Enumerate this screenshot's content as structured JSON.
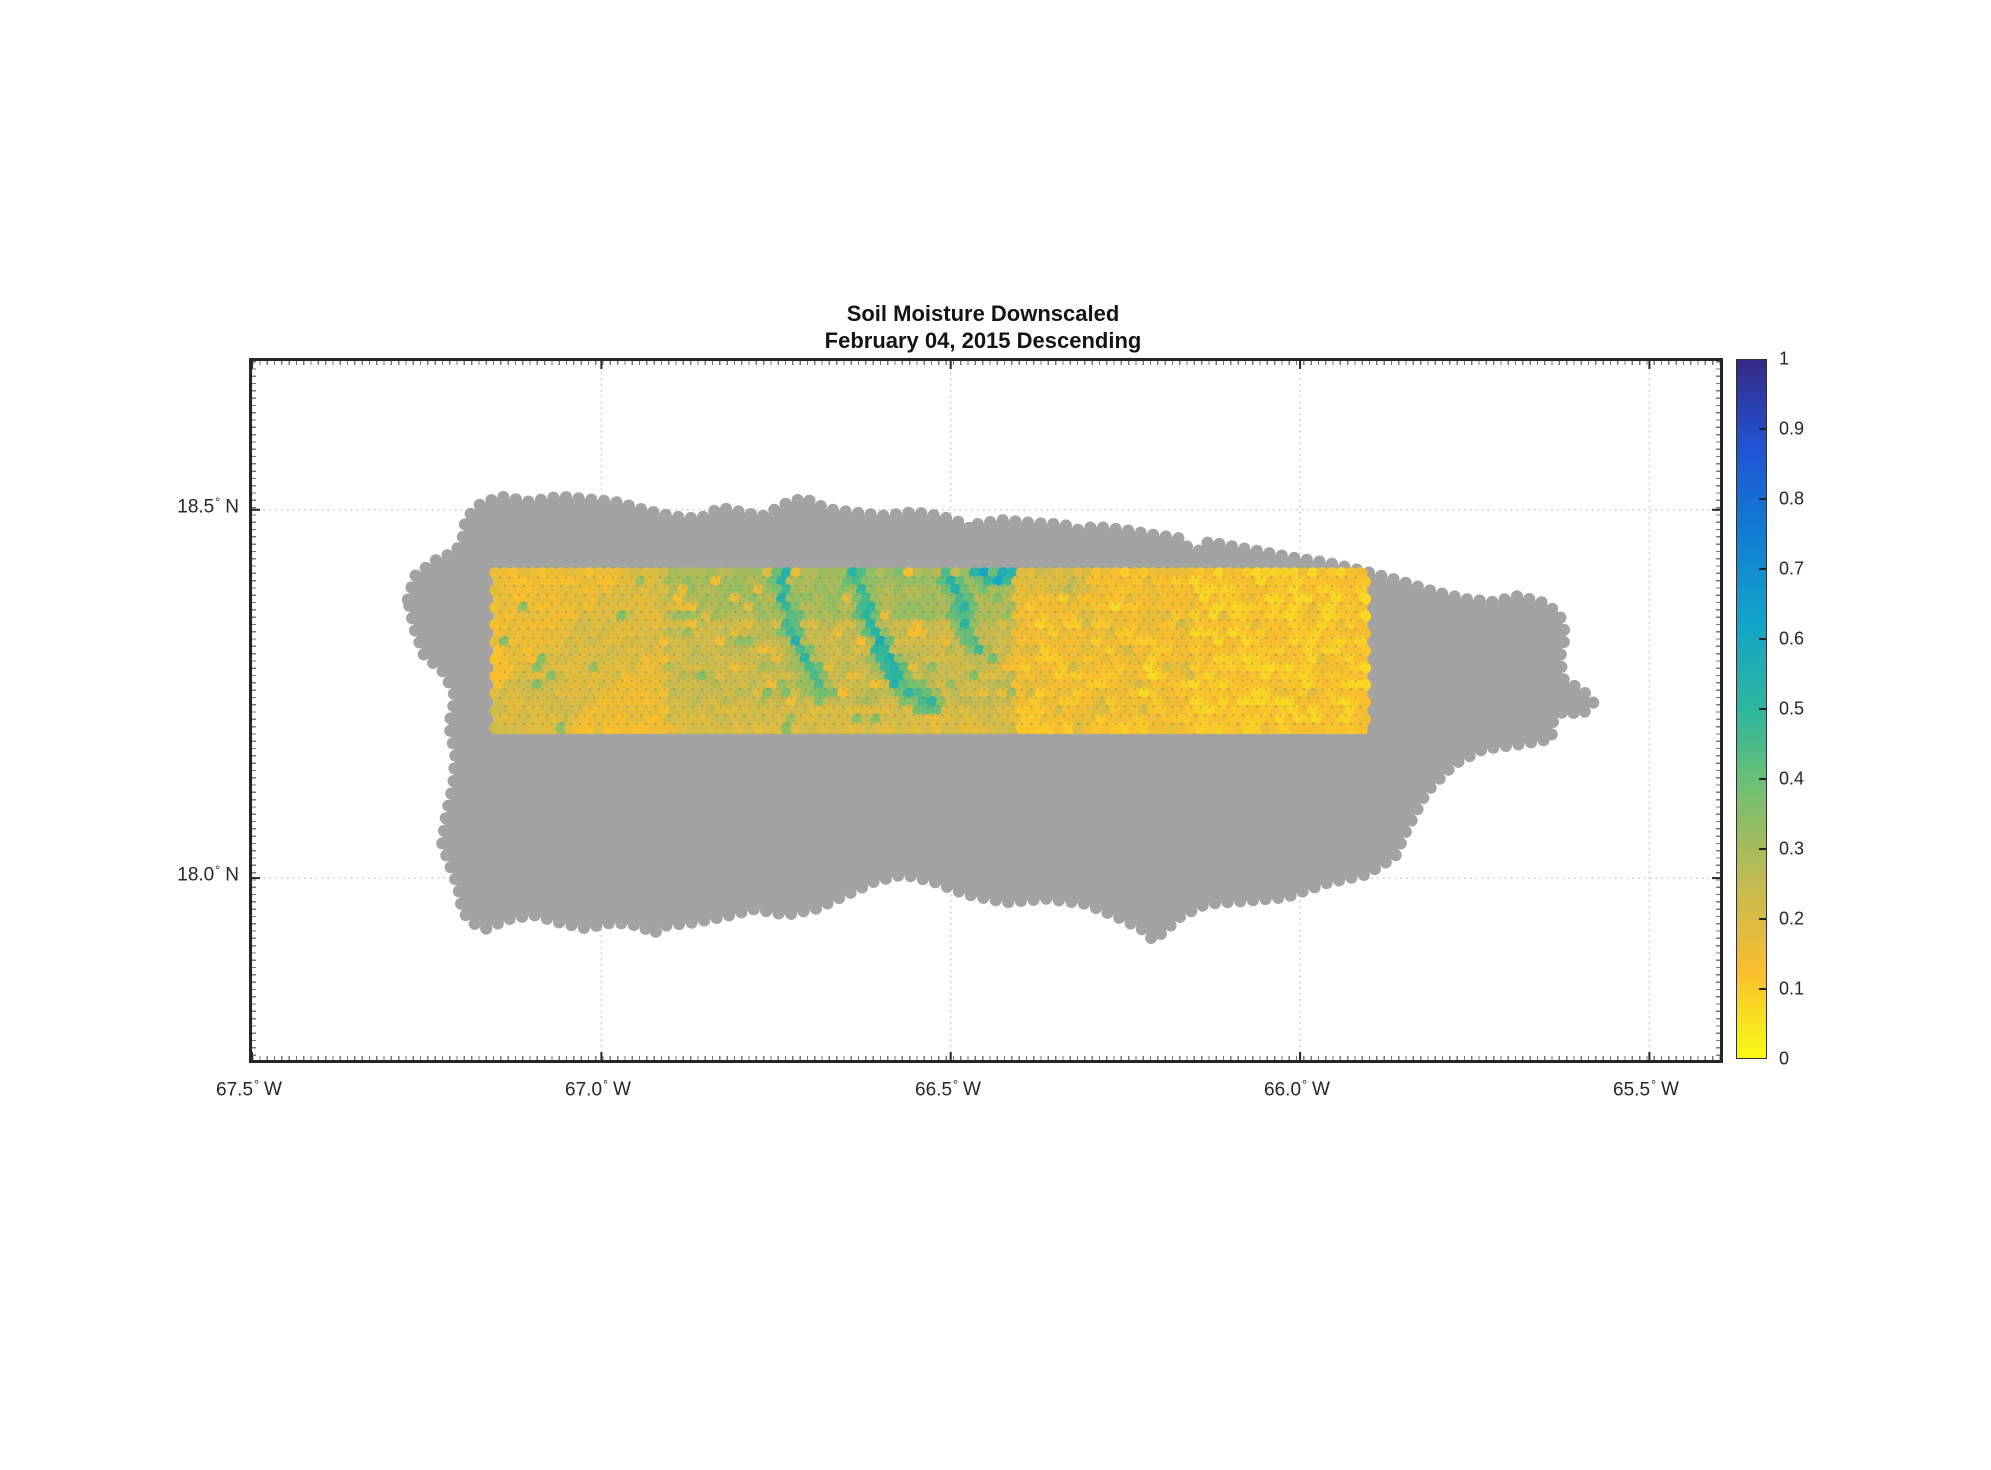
{
  "title": {
    "line1": "Soil Moisture Downscaled",
    "line2": "February 04, 2015 Descending"
  },
  "colors": {
    "background": "#ffffff",
    "land_mask": "#a3a3a3",
    "axis": "#262626",
    "grid": "#c8c8c8",
    "text": "#1a1a1a",
    "speck": "#777777"
  },
  "chart_data": {
    "type": "heatmap",
    "title": "Soil Moisture Downscaled",
    "subtitle": "February 04, 2015 Descending",
    "lon_range": [
      -67.5,
      -65.399
    ],
    "lat_range": [
      17.753,
      18.702
    ],
    "grid_on": true,
    "x_ticks": [
      {
        "lon": -67.5,
        "label": "67.5° W"
      },
      {
        "lon": -67.0,
        "label": "67.0° W"
      },
      {
        "lon": -66.5,
        "label": "66.5° W"
      },
      {
        "lon": -66.0,
        "label": "66.0° W"
      },
      {
        "lon": -65.5,
        "label": "65.5° W"
      }
    ],
    "y_ticks": [
      {
        "lat": 18.5,
        "label": "18.5° N"
      },
      {
        "lat": 18.0,
        "label": "18.0° N"
      }
    ],
    "colorbar": {
      "min": 0,
      "max": 1,
      "ticks": [
        {
          "v": 1.0,
          "label": "1"
        },
        {
          "v": 0.9,
          "label": "0.9"
        },
        {
          "v": 0.8,
          "label": "0.8"
        },
        {
          "v": 0.7,
          "label": "0.7"
        },
        {
          "v": 0.6,
          "label": "0.6"
        },
        {
          "v": 0.5,
          "label": "0.5"
        },
        {
          "v": 0.4,
          "label": "0.4"
        },
        {
          "v": 0.3,
          "label": "0.3"
        },
        {
          "v": 0.2,
          "label": "0.2"
        },
        {
          "v": 0.1,
          "label": "0.1"
        },
        {
          "v": 0.0,
          "label": "0"
        }
      ],
      "colormap_stops": [
        [
          0.0,
          "#f9fb14"
        ],
        [
          0.125,
          "#f9be2e"
        ],
        [
          0.25,
          "#c4ba51"
        ],
        [
          0.375,
          "#78c06e"
        ],
        [
          0.5,
          "#2db79e"
        ],
        [
          0.625,
          "#12a4ca"
        ],
        [
          0.75,
          "#107ed3"
        ],
        [
          0.875,
          "#2153d4"
        ],
        [
          1.0,
          "#352a87"
        ]
      ]
    },
    "landmask_outline_lonlat": [
      [
        -67.277,
        18.378
      ],
      [
        -67.267,
        18.41
      ],
      [
        -67.238,
        18.431
      ],
      [
        -67.209,
        18.443
      ],
      [
        -67.199,
        18.459
      ],
      [
        -67.194,
        18.488
      ],
      [
        -67.174,
        18.507
      ],
      [
        -67.144,
        18.518
      ],
      [
        -67.103,
        18.511
      ],
      [
        -67.059,
        18.518
      ],
      [
        -67.015,
        18.514
      ],
      [
        -66.976,
        18.51
      ],
      [
        -66.936,
        18.499
      ],
      [
        -66.897,
        18.491
      ],
      [
        -66.859,
        18.488
      ],
      [
        -66.83,
        18.503
      ],
      [
        -66.799,
        18.497
      ],
      [
        -66.77,
        18.491
      ],
      [
        -66.737,
        18.508
      ],
      [
        -66.71,
        18.516
      ],
      [
        -66.677,
        18.501
      ],
      [
        -66.635,
        18.496
      ],
      [
        -66.594,
        18.492
      ],
      [
        -66.552,
        18.497
      ],
      [
        -66.514,
        18.491
      ],
      [
        -66.479,
        18.481
      ],
      [
        -66.471,
        18.472
      ],
      [
        -66.461,
        18.481
      ],
      [
        -66.425,
        18.486
      ],
      [
        -66.382,
        18.482
      ],
      [
        -66.339,
        18.48
      ],
      [
        -66.318,
        18.473
      ],
      [
        -66.293,
        18.477
      ],
      [
        -66.253,
        18.473
      ],
      [
        -66.21,
        18.466
      ],
      [
        -66.17,
        18.461
      ],
      [
        -66.16,
        18.448
      ],
      [
        -66.143,
        18.444
      ],
      [
        -66.131,
        18.457
      ],
      [
        -66.107,
        18.452
      ],
      [
        -66.06,
        18.444
      ],
      [
        -66.01,
        18.435
      ],
      [
        -65.96,
        18.428
      ],
      [
        -65.91,
        18.417
      ],
      [
        -65.859,
        18.404
      ],
      [
        -65.809,
        18.389
      ],
      [
        -65.764,
        18.379
      ],
      [
        -65.723,
        18.375
      ],
      [
        -65.688,
        18.383
      ],
      [
        -65.652,
        18.374
      ],
      [
        -65.629,
        18.359
      ],
      [
        -65.62,
        18.33
      ],
      [
        -65.628,
        18.299
      ],
      [
        -65.623,
        18.27
      ],
      [
        -65.595,
        18.254
      ],
      [
        -65.58,
        18.238
      ],
      [
        -65.597,
        18.222
      ],
      [
        -65.623,
        18.227
      ],
      [
        -65.639,
        18.211
      ],
      [
        -65.64,
        18.189
      ],
      [
        -65.683,
        18.182
      ],
      [
        -65.738,
        18.175
      ],
      [
        -65.779,
        18.155
      ],
      [
        -65.819,
        18.117
      ],
      [
        -65.848,
        18.064
      ],
      [
        -65.864,
        18.029
      ],
      [
        -65.905,
        18.005
      ],
      [
        -65.962,
        17.993
      ],
      [
        -66.02,
        17.974
      ],
      [
        -66.077,
        17.969
      ],
      [
        -66.134,
        17.965
      ],
      [
        -66.171,
        17.948
      ],
      [
        -66.194,
        17.928
      ],
      [
        -66.21,
        17.916
      ],
      [
        -66.227,
        17.931
      ],
      [
        -66.263,
        17.948
      ],
      [
        -66.307,
        17.965
      ],
      [
        -66.363,
        17.972
      ],
      [
        -66.421,
        17.967
      ],
      [
        -66.478,
        17.978
      ],
      [
        -66.524,
        17.995
      ],
      [
        -66.568,
        18.005
      ],
      [
        -66.61,
        17.995
      ],
      [
        -66.652,
        17.976
      ],
      [
        -66.694,
        17.958
      ],
      [
        -66.736,
        17.95
      ],
      [
        -66.78,
        17.958
      ],
      [
        -66.823,
        17.948
      ],
      [
        -66.866,
        17.94
      ],
      [
        -66.912,
        17.935
      ],
      [
        -66.926,
        17.924
      ],
      [
        -66.943,
        17.935
      ],
      [
        -66.983,
        17.94
      ],
      [
        -67.023,
        17.932
      ],
      [
        -67.061,
        17.94
      ],
      [
        -67.098,
        17.95
      ],
      [
        -67.134,
        17.944
      ],
      [
        -67.166,
        17.931
      ],
      [
        -67.184,
        17.939
      ],
      [
        -67.199,
        17.955
      ],
      [
        -67.205,
        17.988
      ],
      [
        -67.217,
        18.018
      ],
      [
        -67.228,
        18.046
      ],
      [
        -67.222,
        18.086
      ],
      [
        -67.212,
        18.126
      ],
      [
        -67.209,
        18.167
      ],
      [
        -67.218,
        18.208
      ],
      [
        -67.209,
        18.246
      ],
      [
        -67.225,
        18.279
      ],
      [
        -67.254,
        18.303
      ],
      [
        -67.267,
        18.337
      ]
    ],
    "soil_moisture_swath": {
      "lon_range": [
        -67.158,
        -65.901
      ],
      "lat_range": [
        18.193,
        18.42
      ],
      "tile_seams_lon": [
        -66.907,
        -66.408,
        -66.153
      ],
      "tile_mean_moisture": [
        0.15,
        0.24,
        0.13,
        0.105
      ],
      "streams": [
        {
          "path": [
            [
              0.33,
              0.0
            ],
            [
              0.336,
              0.2
            ],
            [
              0.346,
              0.42
            ],
            [
              0.36,
              0.56
            ],
            [
              0.372,
              0.7
            ]
          ],
          "value": 0.48
        },
        {
          "path": [
            [
              0.415,
              0.0
            ],
            [
              0.425,
              0.18
            ],
            [
              0.436,
              0.38
            ],
            [
              0.45,
              0.55
            ],
            [
              0.47,
              0.72
            ],
            [
              0.5,
              0.8
            ]
          ],
          "value": 0.5
        },
        {
          "path": [
            [
              0.52,
              0.02
            ],
            [
              0.531,
              0.18
            ],
            [
              0.545,
              0.35
            ],
            [
              0.56,
              0.5
            ]
          ],
          "value": 0.46
        },
        {
          "path": [
            [
              0.552,
              0.02
            ],
            [
              0.573,
              0.08
            ],
            [
              0.59,
              0.04
            ]
          ],
          "value": 0.56
        }
      ]
    }
  }
}
